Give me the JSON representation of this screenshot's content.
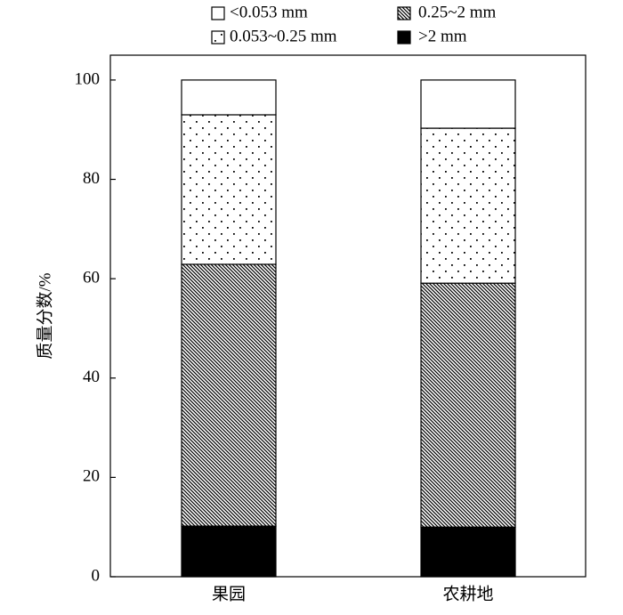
{
  "chart_data": {
    "type": "stacked-bar",
    "y_label": "质量分数/%",
    "categories": [
      "果园",
      "农耕地"
    ],
    "series": [
      {
        "name": ">2 mm",
        "color": "#000000",
        "pattern": "solid",
        "values": [
          10.2,
          10.0
        ]
      },
      {
        "name": "0.25~2 mm",
        "color": "#000000",
        "pattern": "hatch",
        "values": [
          52.7,
          49.1
        ]
      },
      {
        "name": "0.053~0.25 mm",
        "color": "#000000",
        "pattern": "dots",
        "values": [
          30.1,
          31.2
        ]
      },
      {
        "name": "<0.053 mm",
        "color": "#ffffff",
        "pattern": "none",
        "values": [
          7.0,
          9.7
        ]
      }
    ],
    "ylim": [
      0,
      105
    ],
    "yticks": [
      0,
      20,
      40,
      60,
      80,
      100
    ],
    "grid": false
  }
}
